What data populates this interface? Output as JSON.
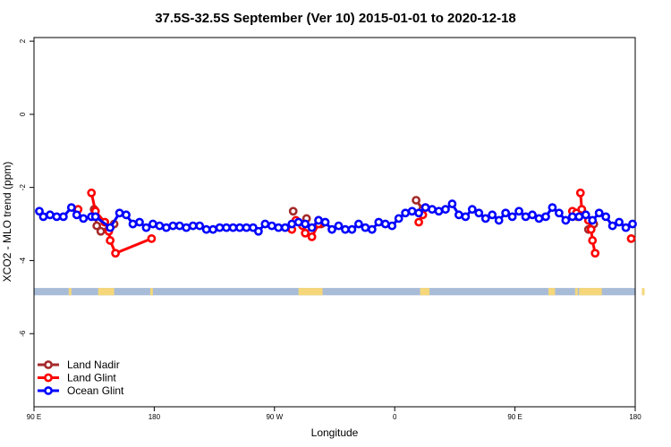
{
  "chart_data": {
    "type": "line",
    "title": "37.5S-32.5S September (Ver 10)   2015-01-01 to 2020-12-18",
    "xlabel": "Longitude",
    "ylabel": "XCO2 - MLO trend (ppm)",
    "x_ticks": [
      {
        "value": 90,
        "label": "90 E"
      },
      {
        "value": 180,
        "label": "180"
      },
      {
        "value": 270,
        "label": "90 W"
      },
      {
        "value": 360,
        "label": "0"
      },
      {
        "value": 450,
        "label": "90 E"
      },
      {
        "value": 540,
        "label": "180"
      }
    ],
    "y_ticks": [
      {
        "value": 2,
        "label": "2"
      },
      {
        "value": 0,
        "label": "0"
      },
      {
        "value": -2,
        "label": "-2"
      },
      {
        "value": -4,
        "label": "-4"
      },
      {
        "value": -6,
        "label": "-6"
      }
    ],
    "xlim": [
      90,
      540
    ],
    "ylim": [
      -8,
      2.1
    ],
    "grid": false,
    "legend_position": "bottom-left",
    "map_strip": {
      "ocean_color": "#a8bcd8",
      "land_color": "#f5d77a",
      "y_range": [
        -4.95,
        -4.75
      ],
      "land_segments": [
        [
          116,
          118
        ],
        [
          138,
          150
        ],
        [
          177,
          179
        ],
        [
          288,
          306
        ],
        [
          379,
          386
        ],
        [
          475,
          480
        ],
        [
          495,
          497
        ],
        [
          545,
          547
        ],
        [
          498,
          515
        ]
      ]
    },
    "series": [
      {
        "name": "Land Nadir",
        "color": "#a52a2a",
        "segments": [
          [
            [
              135,
              -2.6
            ],
            [
              137,
              -3.05
            ],
            [
              140,
              -3.2
            ],
            [
              150,
              -3.0
            ]
          ],
          [
            [
              284,
              -2.65
            ]
          ],
          [
            [
              294,
              -2.85
            ]
          ],
          [
            [
              303,
              -2.9
            ],
            [
              305,
              -3.0
            ]
          ],
          [
            [
              376,
              -2.35
            ],
            [
              381,
              -2.6
            ]
          ],
          [
            [
              497,
              -2.8
            ]
          ],
          [
            [
              500,
              -2.6
            ]
          ],
          [
            [
              505,
              -3.15
            ],
            [
              509,
              -3.0
            ]
          ]
        ]
      },
      {
        "name": "Land Glint",
        "color": "#ff0000",
        "segments": [
          [
            [
              123,
              -2.6
            ]
          ],
          [
            [
              133,
              -2.15
            ],
            [
              136,
              -2.65
            ],
            [
              143,
              -2.95
            ],
            [
              146,
              -3.2
            ],
            [
              147,
              -3.45
            ],
            [
              151,
              -3.8
            ],
            [
              178,
              -3.4
            ]
          ],
          [
            [
              283,
              -3.15
            ],
            [
              286,
              -2.9
            ],
            [
              291,
              -3.05
            ],
            [
              293,
              -3.25
            ],
            [
              298,
              -3.35
            ],
            [
              303,
              -3.0
            ]
          ],
          [
            [
              378,
              -2.95
            ],
            [
              381,
              -2.75
            ],
            [
              383,
              -2.55
            ]
          ],
          [
            [
              499,
              -2.15
            ],
            [
              500,
              -2.6
            ],
            [
              505,
              -2.9
            ],
            [
              507,
              -3.15
            ],
            [
              508,
              -3.45
            ],
            [
              510,
              -3.8
            ]
          ],
          [
            [
              493,
              -2.65
            ],
            [
              496,
              -2.7
            ]
          ],
          [
            [
              537,
              -3.4
            ]
          ]
        ]
      },
      {
        "name": "Ocean Glint",
        "color": "#0000ff",
        "segments": [
          [
            [
              94,
              -2.65
            ],
            [
              97,
              -2.8
            ],
            [
              102,
              -2.75
            ],
            [
              107,
              -2.8
            ],
            [
              112,
              -2.8
            ],
            [
              118,
              -2.55
            ],
            [
              122,
              -2.75
            ],
            [
              127,
              -2.85
            ],
            [
              133,
              -2.8
            ],
            [
              136,
              -2.8
            ],
            [
              147,
              -3.1
            ],
            [
              154,
              -2.7
            ],
            [
              159,
              -2.75
            ],
            [
              164,
              -3.0
            ],
            [
              169,
              -2.95
            ],
            [
              174,
              -3.1
            ],
            [
              179,
              -3.0
            ],
            [
              184,
              -3.05
            ],
            [
              189,
              -3.1
            ],
            [
              194,
              -3.05
            ],
            [
              199,
              -3.05
            ],
            [
              204,
              -3.1
            ],
            [
              209,
              -3.05
            ],
            [
              214,
              -3.05
            ],
            [
              219,
              -3.15
            ],
            [
              224,
              -3.15
            ],
            [
              229,
              -3.1
            ],
            [
              234,
              -3.1
            ],
            [
              239,
              -3.1
            ],
            [
              244,
              -3.1
            ],
            [
              249,
              -3.1
            ],
            [
              254,
              -3.1
            ],
            [
              258,
              -3.2
            ],
            [
              263,
              -3.0
            ],
            [
              268,
              -3.05
            ],
            [
              273,
              -3.1
            ],
            [
              278,
              -3.1
            ],
            [
              283,
              -3.0
            ],
            [
              288,
              -2.95
            ],
            [
              293,
              -3.0
            ],
            [
              298,
              -3.1
            ],
            [
              303,
              -2.9
            ],
            [
              308,
              -2.95
            ],
            [
              313,
              -3.15
            ],
            [
              318,
              -3.05
            ],
            [
              323,
              -3.15
            ],
            [
              328,
              -3.15
            ],
            [
              333,
              -3.0
            ],
            [
              338,
              -3.1
            ],
            [
              343,
              -3.15
            ],
            [
              348,
              -2.95
            ],
            [
              353,
              -3.0
            ],
            [
              358,
              -3.05
            ],
            [
              363,
              -2.85
            ],
            [
              368,
              -2.7
            ],
            [
              373,
              -2.65
            ],
            [
              378,
              -2.7
            ],
            [
              383,
              -2.55
            ],
            [
              388,
              -2.6
            ],
            [
              393,
              -2.65
            ],
            [
              398,
              -2.6
            ],
            [
              403,
              -2.45
            ],
            [
              408,
              -2.75
            ],
            [
              413,
              -2.8
            ],
            [
              418,
              -2.6
            ],
            [
              423,
              -2.7
            ],
            [
              428,
              -2.85
            ],
            [
              433,
              -2.75
            ],
            [
              438,
              -2.9
            ],
            [
              443,
              -2.7
            ],
            [
              448,
              -2.8
            ],
            [
              453,
              -2.65
            ],
            [
              458,
              -2.8
            ],
            [
              463,
              -2.75
            ],
            [
              468,
              -2.85
            ],
            [
              473,
              -2.8
            ],
            [
              478,
              -2.55
            ],
            [
              483,
              -2.7
            ],
            [
              488,
              -2.9
            ],
            [
              493,
              -2.8
            ],
            [
              498,
              -2.8
            ],
            [
              503,
              -2.75
            ],
            [
              508,
              -2.9
            ],
            [
              513,
              -2.7
            ],
            [
              518,
              -2.8
            ],
            [
              523,
              -3.05
            ],
            [
              528,
              -2.95
            ],
            [
              533,
              -3.1
            ],
            [
              538,
              -3.0
            ]
          ]
        ]
      }
    ]
  }
}
